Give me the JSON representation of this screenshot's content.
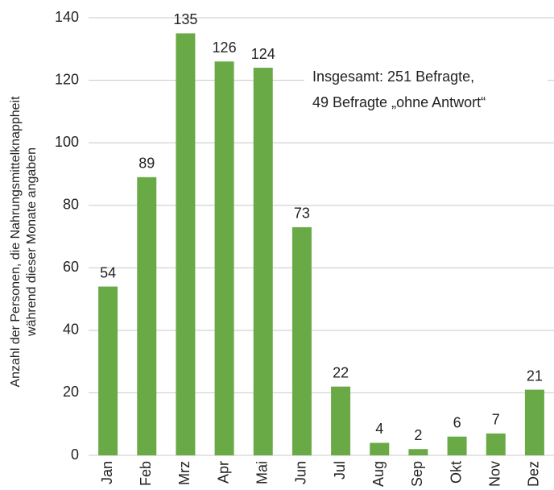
{
  "chart_data": {
    "type": "bar",
    "ylabel": [
      "Anzahl der Personen, die Nahrungsmittelknappheit",
      "während dieser Monate angaben"
    ],
    "annotation": [
      "Insgesamt: 251 Befragte,",
      "49 Befragte „ohne Antwort“"
    ],
    "categories": [
      "Jan",
      "Feb",
      "Mrz",
      "Apr",
      "Mai",
      "Jun",
      "Jul",
      "Aug",
      "Sep",
      "Okt",
      "Nov",
      "Dez"
    ],
    "values": [
      54,
      89,
      135,
      126,
      124,
      73,
      22,
      4,
      2,
      6,
      7,
      21
    ],
    "color": "#6aaa46",
    "ylim": [
      0,
      140
    ],
    "yticks": [
      0,
      20,
      40,
      60,
      80,
      100,
      120,
      140
    ],
    "grid": true
  }
}
